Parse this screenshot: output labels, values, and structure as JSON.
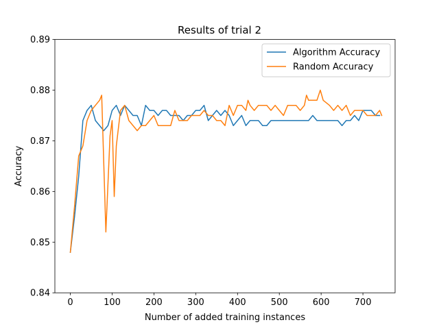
{
  "chart_data": {
    "type": "line",
    "title": "Results of trial 2",
    "xlabel": "Number of added training instances",
    "ylabel": "Accuracy",
    "xlim": [
      -37,
      777
    ],
    "ylim": [
      0.84,
      0.89
    ],
    "xticks": [
      0,
      100,
      200,
      300,
      400,
      500,
      600,
      700
    ],
    "yticks": [
      0.84,
      0.85,
      0.86,
      0.87,
      0.88,
      0.89
    ],
    "grid": false,
    "legend_position": "top-right",
    "series": [
      {
        "name": "Algorithm Accuracy",
        "color": "#1f77b4",
        "points": [
          [
            0,
            0.848
          ],
          [
            10,
            0.855
          ],
          [
            20,
            0.863
          ],
          [
            30,
            0.874
          ],
          [
            40,
            0.876
          ],
          [
            50,
            0.877
          ],
          [
            60,
            0.874
          ],
          [
            70,
            0.873
          ],
          [
            80,
            0.872
          ],
          [
            90,
            0.873
          ],
          [
            100,
            0.876
          ],
          [
            110,
            0.877
          ],
          [
            120,
            0.875
          ],
          [
            130,
            0.877
          ],
          [
            140,
            0.876
          ],
          [
            150,
            0.875
          ],
          [
            160,
            0.875
          ],
          [
            170,
            0.873
          ],
          [
            180,
            0.877
          ],
          [
            190,
            0.876
          ],
          [
            200,
            0.876
          ],
          [
            210,
            0.875
          ],
          [
            220,
            0.876
          ],
          [
            230,
            0.876
          ],
          [
            240,
            0.875
          ],
          [
            250,
            0.875
          ],
          [
            260,
            0.875
          ],
          [
            270,
            0.874
          ],
          [
            280,
            0.875
          ],
          [
            290,
            0.875
          ],
          [
            300,
            0.876
          ],
          [
            310,
            0.876
          ],
          [
            320,
            0.877
          ],
          [
            330,
            0.874
          ],
          [
            340,
            0.875
          ],
          [
            350,
            0.876
          ],
          [
            360,
            0.875
          ],
          [
            370,
            0.876
          ],
          [
            380,
            0.875
          ],
          [
            390,
            0.873
          ],
          [
            400,
            0.874
          ],
          [
            410,
            0.875
          ],
          [
            420,
            0.873
          ],
          [
            430,
            0.874
          ],
          [
            440,
            0.874
          ],
          [
            450,
            0.874
          ],
          [
            460,
            0.873
          ],
          [
            470,
            0.873
          ],
          [
            480,
            0.874
          ],
          [
            490,
            0.874
          ],
          [
            500,
            0.874
          ],
          [
            510,
            0.874
          ],
          [
            520,
            0.874
          ],
          [
            530,
            0.874
          ],
          [
            540,
            0.874
          ],
          [
            550,
            0.874
          ],
          [
            560,
            0.874
          ],
          [
            570,
            0.874
          ],
          [
            580,
            0.875
          ],
          [
            590,
            0.874
          ],
          [
            600,
            0.874
          ],
          [
            610,
            0.874
          ],
          [
            620,
            0.874
          ],
          [
            630,
            0.874
          ],
          [
            640,
            0.874
          ],
          [
            650,
            0.873
          ],
          [
            660,
            0.874
          ],
          [
            670,
            0.874
          ],
          [
            680,
            0.875
          ],
          [
            690,
            0.874
          ],
          [
            700,
            0.876
          ],
          [
            710,
            0.876
          ],
          [
            720,
            0.876
          ],
          [
            730,
            0.875
          ],
          [
            740,
            0.875
          ]
        ]
      },
      {
        "name": "Random Accuracy",
        "color": "#ff7f0e",
        "points": [
          [
            0,
            0.848
          ],
          [
            10,
            0.857
          ],
          [
            20,
            0.867
          ],
          [
            30,
            0.869
          ],
          [
            40,
            0.874
          ],
          [
            50,
            0.876
          ],
          [
            60,
            0.877
          ],
          [
            70,
            0.878
          ],
          [
            75,
            0.879
          ],
          [
            85,
            0.852
          ],
          [
            95,
            0.871
          ],
          [
            100,
            0.874
          ],
          [
            105,
            0.859
          ],
          [
            110,
            0.869
          ],
          [
            120,
            0.876
          ],
          [
            130,
            0.877
          ],
          [
            140,
            0.874
          ],
          [
            150,
            0.873
          ],
          [
            160,
            0.872
          ],
          [
            170,
            0.873
          ],
          [
            180,
            0.873
          ],
          [
            190,
            0.874
          ],
          [
            200,
            0.875
          ],
          [
            210,
            0.873
          ],
          [
            220,
            0.873
          ],
          [
            230,
            0.873
          ],
          [
            240,
            0.873
          ],
          [
            250,
            0.876
          ],
          [
            260,
            0.874
          ],
          [
            270,
            0.874
          ],
          [
            280,
            0.874
          ],
          [
            290,
            0.875
          ],
          [
            300,
            0.875
          ],
          [
            310,
            0.875
          ],
          [
            320,
            0.876
          ],
          [
            330,
            0.875
          ],
          [
            340,
            0.875
          ],
          [
            350,
            0.874
          ],
          [
            360,
            0.874
          ],
          [
            370,
            0.873
          ],
          [
            380,
            0.877
          ],
          [
            390,
            0.875
          ],
          [
            400,
            0.877
          ],
          [
            410,
            0.877
          ],
          [
            420,
            0.876
          ],
          [
            425,
            0.878
          ],
          [
            430,
            0.877
          ],
          [
            440,
            0.876
          ],
          [
            450,
            0.877
          ],
          [
            460,
            0.877
          ],
          [
            470,
            0.877
          ],
          [
            480,
            0.876
          ],
          [
            490,
            0.877
          ],
          [
            500,
            0.876
          ],
          [
            510,
            0.875
          ],
          [
            520,
            0.877
          ],
          [
            530,
            0.877
          ],
          [
            540,
            0.877
          ],
          [
            550,
            0.876
          ],
          [
            560,
            0.877
          ],
          [
            565,
            0.879
          ],
          [
            570,
            0.878
          ],
          [
            580,
            0.878
          ],
          [
            590,
            0.878
          ],
          [
            598,
            0.88
          ],
          [
            605,
            0.878
          ],
          [
            620,
            0.877
          ],
          [
            630,
            0.876
          ],
          [
            640,
            0.877
          ],
          [
            650,
            0.876
          ],
          [
            660,
            0.877
          ],
          [
            670,
            0.875
          ],
          [
            680,
            0.876
          ],
          [
            690,
            0.876
          ],
          [
            700,
            0.876
          ],
          [
            710,
            0.875
          ],
          [
            720,
            0.875
          ],
          [
            730,
            0.875
          ],
          [
            740,
            0.876
          ],
          [
            745,
            0.875
          ]
        ]
      }
    ]
  }
}
